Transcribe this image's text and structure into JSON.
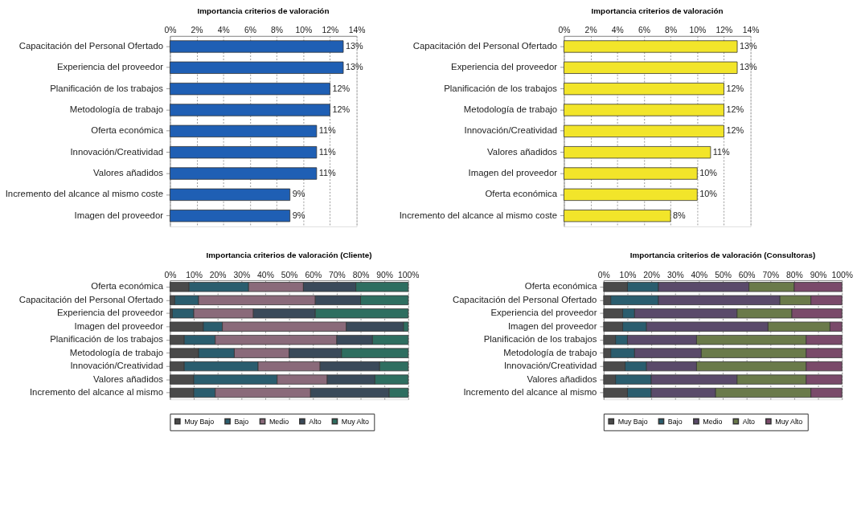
{
  "chart_data": [
    {
      "type": "bar",
      "orientation": "horizontal",
      "title": "Importancia criterios de valoración",
      "categories": [
        "Capacitación del Personal Ofertado",
        "Experiencia del proveedor",
        "Planificación de los trabajos",
        "Metodología de trabajo",
        "Oferta económica",
        "Innovación/Creatividad",
        "Valores añadidos",
        "Incremento del alcance al mismo coste",
        "Imagen del proveedor"
      ],
      "series": [
        {
          "color": "#1f5fb4",
          "values": [
            13,
            13,
            12,
            12,
            11,
            11,
            11,
            9,
            9
          ],
          "value_labels": [
            "13%",
            "13%",
            "12%",
            "12%",
            "11%",
            "11%",
            "11%",
            "9%",
            "9%"
          ]
        }
      ],
      "xlim": [
        0,
        14
      ],
      "xticks": [
        {
          "value": 0,
          "label": "0%"
        },
        {
          "value": 2,
          "label": "2%"
        },
        {
          "value": 4,
          "label": "4%"
        },
        {
          "value": 6,
          "label": "6%"
        },
        {
          "value": 8,
          "label": "8%"
        },
        {
          "value": 10,
          "label": "10%"
        },
        {
          "value": 12,
          "label": "12%"
        },
        {
          "value": 14,
          "label": "14%"
        }
      ],
      "grid": "x"
    },
    {
      "type": "bar",
      "orientation": "horizontal",
      "title": "Importancia criterios de valoración",
      "categories": [
        "Capacitación del Personal Ofertado",
        "Experiencia del proveedor",
        "Planificación de los trabajos",
        "Metodología de trabajo",
        "Innovación/Creatividad",
        "Valores añadidos",
        "Imagen del proveedor",
        "Oferta económica",
        "Incremento del alcance al mismo coste"
      ],
      "series": [
        {
          "color": "#f2e52a",
          "values": [
            13,
            13,
            12,
            12,
            12,
            11,
            10,
            10,
            8
          ],
          "value_labels": [
            "13%",
            "13%",
            "12%",
            "12%",
            "12%",
            "11%",
            "10%",
            "10%",
            "8%"
          ]
        }
      ],
      "xlim": [
        0,
        14
      ],
      "xticks": [
        {
          "value": 0,
          "label": "0%"
        },
        {
          "value": 2,
          "label": "2%"
        },
        {
          "value": 4,
          "label": "4%"
        },
        {
          "value": 6,
          "label": "6%"
        },
        {
          "value": 8,
          "label": "8%"
        },
        {
          "value": 10,
          "label": "10%"
        },
        {
          "value": 12,
          "label": "12%"
        },
        {
          "value": 14,
          "label": "14%"
        }
      ],
      "grid": "x"
    },
    {
      "type": "bar",
      "orientation": "horizontal",
      "stacked": true,
      "title": "Importancia criterios de valoración (Cliente)",
      "categories": [
        "Oferta económica",
        "Capacitación del Personal Ofertado",
        "Experiencia del proveedor",
        "Imagen del proveedor",
        "Planificación de los trabajos",
        "Metodología de trabajo",
        "Innovación/Creatividad",
        "Valores añadidos",
        "Incremento del alcance al mismo"
      ],
      "series": [
        {
          "name": "Muy Bajo",
          "color": "#4a4a4a",
          "values": [
            8,
            2,
            1,
            14,
            6,
            12,
            6,
            10,
            10
          ]
        },
        {
          "name": "Bajo",
          "color": "#2a5d6e",
          "values": [
            25,
            10,
            9,
            8,
            13,
            15,
            31,
            35,
            9
          ]
        },
        {
          "name": "Medio",
          "color": "#8a6a7a",
          "values": [
            23,
            49,
            25,
            52,
            51,
            23,
            26,
            21,
            40
          ]
        },
        {
          "name": "Alto",
          "color": "#3a4a5a",
          "values": [
            22,
            19,
            26,
            24,
            15,
            22,
            25,
            20,
            33
          ]
        },
        {
          "name": "Muy Alto",
          "color": "#2e6e60",
          "values": [
            22,
            20,
            39,
            2,
            15,
            28,
            12,
            14,
            8
          ]
        }
      ],
      "xlim": [
        0,
        100
      ],
      "xticks": [
        {
          "value": 0,
          "label": "0%"
        },
        {
          "value": 10,
          "label": "10%"
        },
        {
          "value": 20,
          "label": "20%"
        },
        {
          "value": 30,
          "label": "30%"
        },
        {
          "value": 40,
          "label": "40%"
        },
        {
          "value": 50,
          "label": "50%"
        },
        {
          "value": 60,
          "label": "60%"
        },
        {
          "value": 70,
          "label": "70%"
        },
        {
          "value": 80,
          "label": "80%"
        },
        {
          "value": 90,
          "label": "90%"
        },
        {
          "value": 100,
          "label": "100%"
        }
      ],
      "grid": "x",
      "legend": "bottom"
    },
    {
      "type": "bar",
      "orientation": "horizontal",
      "stacked": true,
      "title": "Importancia criterios de valoración (Consultoras)",
      "categories": [
        "Oferta económica",
        "Capacitación del Personal Ofertado",
        "Experiencia del proveedor",
        "Imagen del proveedor",
        "Planificación de los trabajos",
        "Metodología de trabajo",
        "Innovación/Creatividad",
        "Valores añadidos",
        "Incremento del alcance al mismo"
      ],
      "series": [
        {
          "name": "Muy Bajo",
          "color": "#4a4a4a",
          "values": [
            10,
            3,
            8,
            8,
            5,
            3,
            9,
            5,
            10
          ]
        },
        {
          "name": "Bajo",
          "color": "#2a5d6e",
          "values": [
            13,
            20,
            5,
            10,
            5,
            10,
            9,
            15,
            10
          ]
        },
        {
          "name": "Medio",
          "color": "#5a4a6a",
          "values": [
            38,
            51,
            43,
            51,
            29,
            28,
            21,
            36,
            27
          ]
        },
        {
          "name": "Alto",
          "color": "#6a7a4a",
          "values": [
            19,
            13,
            23,
            26,
            46,
            44,
            46,
            29,
            40
          ]
        },
        {
          "name": "Muy Alto",
          "color": "#7a4a6a",
          "values": [
            20,
            13,
            21,
            5,
            15,
            15,
            15,
            15,
            13
          ]
        }
      ],
      "xlim": [
        0,
        100
      ],
      "xticks": [
        {
          "value": 0,
          "label": "0%"
        },
        {
          "value": 10,
          "label": "10%"
        },
        {
          "value": 20,
          "label": "20%"
        },
        {
          "value": 30,
          "label": "30%"
        },
        {
          "value": 40,
          "label": "40%"
        },
        {
          "value": 50,
          "label": "50%"
        },
        {
          "value": 60,
          "label": "60%"
        },
        {
          "value": 70,
          "label": "70%"
        },
        {
          "value": 80,
          "label": "80%"
        },
        {
          "value": 90,
          "label": "90%"
        },
        {
          "value": 100,
          "label": "100%"
        }
      ],
      "grid": "x",
      "legend": "bottom"
    }
  ]
}
